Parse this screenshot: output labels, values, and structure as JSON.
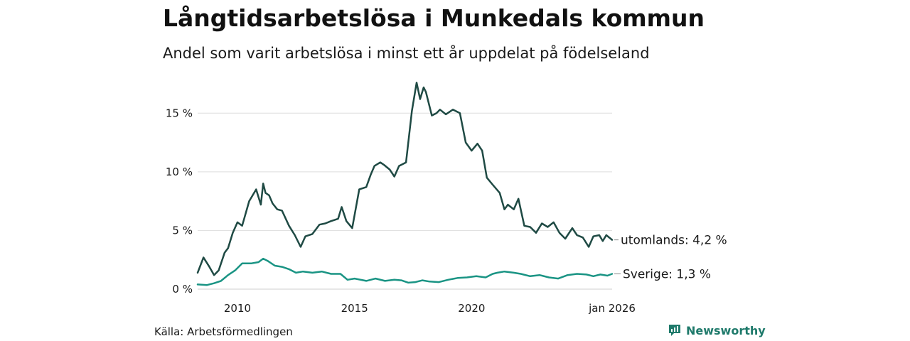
{
  "title": "Långtidsarbetslösa i Munkedals kommun",
  "subtitle": "Andel som varit arbetslösa i minst ett år uppdelat på födelseland",
  "source": "Källa: Arbetsförmedlingen",
  "brand": "Newsworthy",
  "colors": {
    "utomlands": "#1f4a44",
    "sverige": "#1a9484",
    "grid": "#dddddd",
    "brand": "#1f7a6b"
  },
  "chart_data": {
    "type": "line",
    "title": "Långtidsarbetslösa i Munkedals kommun",
    "xlabel": "",
    "ylabel": "",
    "xlim": [
      2008.3,
      2026.0
    ],
    "ylim": [
      0,
      17.5
    ],
    "y_ticks": [
      {
        "value": 0,
        "label": "0 %"
      },
      {
        "value": 5,
        "label": "5 %"
      },
      {
        "value": 10,
        "label": "10 %"
      },
      {
        "value": 15,
        "label": "15 %"
      }
    ],
    "x_ticks": [
      {
        "value": 2010,
        "label": "2010"
      },
      {
        "value": 2015,
        "label": "2015"
      },
      {
        "value": 2020,
        "label": "2020"
      },
      {
        "value": 2026.0,
        "label": "jan 2026"
      }
    ],
    "series": [
      {
        "name": "utomlands",
        "end_label": "utomlands: 4,2 %",
        "x": [
          2008.3,
          2008.55,
          2008.8,
          2009.0,
          2009.2,
          2009.45,
          2009.6,
          2009.8,
          2010.0,
          2010.2,
          2010.5,
          2010.8,
          2011.0,
          2011.1,
          2011.2,
          2011.35,
          2011.5,
          2011.7,
          2011.9,
          2012.2,
          2012.45,
          2012.7,
          2012.9,
          2013.2,
          2013.5,
          2013.75,
          2014.0,
          2014.3,
          2014.45,
          2014.65,
          2014.9,
          2015.2,
          2015.5,
          2015.7,
          2015.85,
          2016.1,
          2016.25,
          2016.5,
          2016.7,
          2016.9,
          2017.2,
          2017.45,
          2017.65,
          2017.8,
          2017.95,
          2018.05,
          2018.3,
          2018.5,
          2018.65,
          2018.9,
          2019.2,
          2019.5,
          2019.75,
          2020.0,
          2020.25,
          2020.45,
          2020.65,
          2020.9,
          2021.2,
          2021.4,
          2021.55,
          2021.8,
          2022.0,
          2022.25,
          2022.5,
          2022.75,
          2023.0,
          2023.25,
          2023.5,
          2023.75,
          2024.0,
          2024.3,
          2024.5,
          2024.75,
          2025.0,
          2025.2,
          2025.45,
          2025.6,
          2025.75,
          2026.0
        ],
        "values": [
          1.4,
          2.7,
          1.9,
          1.2,
          1.6,
          3.1,
          3.5,
          4.8,
          5.7,
          5.4,
          7.5,
          8.5,
          7.2,
          9.0,
          8.2,
          8.0,
          7.3,
          6.8,
          6.7,
          5.4,
          4.6,
          3.6,
          4.5,
          4.7,
          5.5,
          5.6,
          5.8,
          6.0,
          7.0,
          5.8,
          5.2,
          8.5,
          8.7,
          9.8,
          10.5,
          10.8,
          10.6,
          10.2,
          9.6,
          10.5,
          10.8,
          15.2,
          17.6,
          16.2,
          17.2,
          16.8,
          14.8,
          15.0,
          15.3,
          14.9,
          15.3,
          15.0,
          12.5,
          11.8,
          12.4,
          11.8,
          9.5,
          8.9,
          8.2,
          6.8,
          7.2,
          6.8,
          7.7,
          5.4,
          5.3,
          4.8,
          5.6,
          5.3,
          5.7,
          4.8,
          4.3,
          5.2,
          4.6,
          4.4,
          3.6,
          4.5,
          4.6,
          4.1,
          4.6,
          4.2
        ]
      },
      {
        "name": "Sverige",
        "end_label": "Sverige: 1,3 %",
        "x": [
          2008.3,
          2008.7,
          2009.0,
          2009.3,
          2009.6,
          2009.9,
          2010.2,
          2010.6,
          2010.9,
          2011.1,
          2011.3,
          2011.6,
          2011.9,
          2012.2,
          2012.5,
          2012.8,
          2013.2,
          2013.6,
          2014.0,
          2014.4,
          2014.7,
          2015.0,
          2015.5,
          2015.9,
          2016.3,
          2016.7,
          2017.0,
          2017.3,
          2017.6,
          2017.9,
          2018.2,
          2018.6,
          2019.0,
          2019.4,
          2019.8,
          2020.2,
          2020.6,
          2020.9,
          2021.1,
          2021.4,
          2021.8,
          2022.1,
          2022.5,
          2022.9,
          2023.3,
          2023.7,
          2024.1,
          2024.5,
          2024.9,
          2025.2,
          2025.5,
          2025.8,
          2026.0
        ],
        "values": [
          0.4,
          0.35,
          0.5,
          0.7,
          1.2,
          1.6,
          2.2,
          2.2,
          2.3,
          2.6,
          2.4,
          2.0,
          1.9,
          1.7,
          1.4,
          1.5,
          1.4,
          1.5,
          1.3,
          1.3,
          0.8,
          0.9,
          0.7,
          0.9,
          0.7,
          0.8,
          0.75,
          0.55,
          0.6,
          0.75,
          0.65,
          0.6,
          0.8,
          0.95,
          1.0,
          1.1,
          1.0,
          1.3,
          1.4,
          1.5,
          1.4,
          1.3,
          1.1,
          1.2,
          1.0,
          0.9,
          1.2,
          1.3,
          1.25,
          1.1,
          1.25,
          1.15,
          1.3
        ]
      }
    ]
  }
}
